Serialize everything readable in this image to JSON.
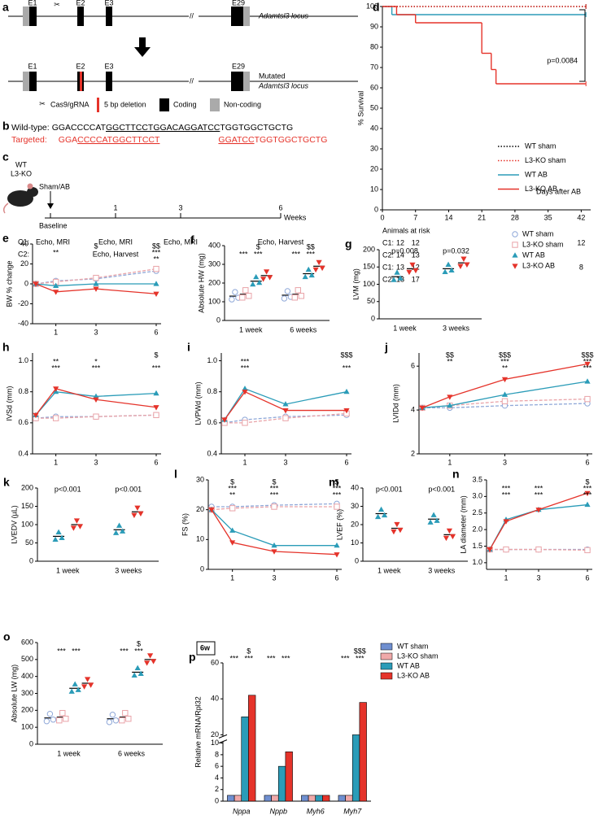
{
  "figure_a": {
    "panel": "a",
    "exons": [
      "E1",
      "E2",
      "E3",
      "E29"
    ],
    "locus": "Adamtsl3 locus",
    "mutated_exons": [
      "E1",
      "E2",
      "E3",
      "E29"
    ],
    "mutated_locus": [
      "Mutated",
      "Adamtsl3 locus"
    ],
    "legend": [
      "Cas9/gRNA",
      "5 bp deletion",
      "Coding",
      "Non-coding"
    ]
  },
  "figure_b": {
    "panel": "b",
    "wild_label": "Wild-type:",
    "wild_seq": [
      "GGACCCCAT",
      "GGCTTCCTGGACAGGATCC",
      "TGGTGGCTGCTG"
    ],
    "targeted_label": "Targeted:",
    "targeted_seq": [
      "GGA",
      "CCCCATGGCTTCCT",
      "GGATCC",
      "TGGTGGCTGCTG"
    ]
  },
  "figure_c": {
    "panel": "c",
    "mouse_labels": [
      "WT",
      "L3-KO"
    ],
    "intervention": "Sham/AB",
    "baseline": "Baseline",
    "timepoints": [
      "1",
      "3",
      "6"
    ],
    "unit": "Weeks",
    "c1_label": "C1:",
    "c1": [
      "Echo, MRI",
      "Echo, MRI",
      "Echo, MRI",
      "Echo, Harvest"
    ],
    "c2_label": "C2:",
    "c2": [
      "Echo, Harvest"
    ]
  },
  "legend": {
    "names": [
      "WT sham",
      "L3-KO sham",
      "WT AB",
      "L3-KO AB"
    ],
    "colors": [
      "#8fa8d8",
      "#e9a3a8",
      "#2b9cb8",
      "#e5332a"
    ],
    "markers": [
      "circle",
      "square",
      "triangle-up",
      "triangle-down"
    ],
    "dashed": [
      true,
      true,
      false,
      false
    ]
  },
  "chart_data": [
    {
      "panel": "d",
      "type": "survival",
      "ylabel": "% Survival",
      "xlabel": "Days after AB",
      "annotation": "p=0.0084",
      "xlim": [
        0,
        44
      ],
      "ylim": [
        0,
        100
      ],
      "xticks": [
        0,
        7,
        14,
        21,
        28,
        35,
        42
      ],
      "yticks": [
        0,
        10,
        20,
        30,
        40,
        50,
        60,
        70,
        80,
        90,
        100
      ],
      "series": [
        {
          "name": "WT sham",
          "color": "#000000",
          "dash": "1.5 2",
          "x": [
            0,
            43
          ],
          "values": [
            100,
            100
          ]
        },
        {
          "name": "L3-KO sham",
          "color": "#e5332a",
          "dash": "1.5 2",
          "x": [
            0,
            43
          ],
          "values": [
            100,
            100
          ]
        },
        {
          "name": "WT AB",
          "color": "#2b9cb8",
          "dash": "",
          "x": [
            0,
            2,
            43
          ],
          "values": [
            100,
            96,
            96
          ]
        },
        {
          "name": "L3-KO AB",
          "color": "#e5332a",
          "dash": "",
          "x": [
            0,
            3,
            7,
            21,
            23,
            24,
            43
          ],
          "values": [
            100,
            96,
            92,
            77,
            69,
            62,
            62
          ]
        }
      ],
      "risk_title": "Animals at risk",
      "risk_days": [
        0,
        7,
        42
      ],
      "risk_rows": [
        {
          "label": "C1:",
          "color": "#2b9cb8",
          "values": [
            12,
            12,
            12
          ]
        },
        {
          "label": "C2:",
          "color": "#2b9cb8",
          "values": [
            14,
            13,
            null
          ]
        },
        {
          "label": "C1:",
          "color": "#e5332a",
          "values": [
            13,
            12,
            8
          ]
        },
        {
          "label": "C2:",
          "color": "#e5332a",
          "values": [
            18,
            17,
            null
          ]
        }
      ]
    },
    {
      "panel": "e",
      "type": "line",
      "ylabel": "BW % change",
      "x": [
        0,
        1,
        3,
        6
      ],
      "xticks": [
        1,
        3,
        6
      ],
      "ylim": [
        -40,
        40
      ],
      "yticks": [
        -40,
        -20,
        0,
        20,
        40
      ],
      "ko_vs_wt_ab": [
        null,
        null,
        "$",
        "$$"
      ],
      "series": [
        {
          "group": 0,
          "values": [
            0,
            3,
            5,
            13
          ],
          "sig": null
        },
        {
          "group": 1,
          "values": [
            0,
            2,
            6,
            15
          ],
          "sig": null
        },
        {
          "group": 2,
          "values": [
            0,
            -2,
            0,
            0
          ],
          "sig": [
            null,
            null,
            null,
            "**"
          ]
        },
        {
          "group": 3,
          "values": [
            0,
            -8,
            -5,
            -10
          ],
          "sig": [
            null,
            "**",
            null,
            "***"
          ]
        }
      ]
    },
    {
      "panel": "f",
      "type": "dot",
      "ylabel": "Absolute HW (mg)",
      "categories": [
        "1 week",
        "6 weeks"
      ],
      "ylim": [
        0,
        400
      ],
      "yticks": [
        0,
        100,
        200,
        300,
        400
      ],
      "ko_vs_wt_ab": [
        "$",
        "$$"
      ],
      "series": [
        {
          "group": 0,
          "values": [
            130,
            135
          ],
          "sig": null
        },
        {
          "group": 1,
          "values": [
            140,
            140
          ],
          "sig": null
        },
        {
          "group": 2,
          "values": [
            210,
            250
          ],
          "sig": [
            "***",
            "***"
          ]
        },
        {
          "group": 3,
          "values": [
            240,
            290
          ],
          "sig": [
            "***",
            "***"
          ]
        }
      ]
    },
    {
      "panel": "g",
      "type": "dot",
      "ylabel": "LVM (mg)",
      "categories": [
        "1 week",
        "3 weeks"
      ],
      "ylim": [
        0,
        200
      ],
      "yticks": [
        0,
        50,
        100,
        150,
        200
      ],
      "pvalues": [
        "p=0.008",
        "p=0.032"
      ],
      "series": [
        {
          "group": 2,
          "values": [
            122,
            145
          ],
          "sig": null
        },
        {
          "group": 3,
          "values": [
            145,
            162
          ],
          "sig": null
        }
      ]
    },
    {
      "panel": "h",
      "type": "line",
      "ylabel": "IVSd (mm)",
      "x": [
        0,
        1,
        3,
        6
      ],
      "xticks": [
        1,
        3,
        6
      ],
      "ylim": [
        0.4,
        1.05
      ],
      "yticks": [
        0.4,
        0.6,
        0.8,
        {
          "value": 1,
          "label": "1.0"
        }
      ],
      "ko_vs_wt_ab": [
        null,
        null,
        null,
        "$"
      ],
      "series": [
        {
          "group": 0,
          "values": [
            0.63,
            0.64,
            0.64,
            0.65
          ],
          "sig": null
        },
        {
          "group": 1,
          "values": [
            0.63,
            0.63,
            0.64,
            0.65
          ],
          "sig": null
        },
        {
          "group": 2,
          "values": [
            0.65,
            0.8,
            0.77,
            0.79
          ],
          "sig": [
            null,
            "***",
            "***",
            "***"
          ]
        },
        {
          "group": 3,
          "values": [
            0.65,
            0.82,
            0.75,
            0.7
          ],
          "sig": [
            null,
            "**",
            "*",
            null
          ]
        }
      ]
    },
    {
      "panel": "i",
      "type": "line",
      "ylabel": "LVPWd (mm)",
      "x": [
        0,
        1,
        3,
        6
      ],
      "xticks": [
        1,
        3,
        6
      ],
      "ylim": [
        0.4,
        1.05
      ],
      "yticks": [
        0.4,
        0.6,
        0.8,
        {
          "value": 1,
          "label": "1.0"
        }
      ],
      "ko_vs_wt_ab": [
        null,
        null,
        null,
        "$$$"
      ],
      "series": [
        {
          "group": 0,
          "values": [
            0.6,
            0.62,
            0.64,
            0.65
          ],
          "sig": null
        },
        {
          "group": 1,
          "values": [
            0.6,
            0.6,
            0.63,
            0.66
          ],
          "sig": null
        },
        {
          "group": 2,
          "values": [
            0.62,
            0.82,
            0.72,
            0.8
          ],
          "sig": [
            null,
            "***",
            null,
            "***"
          ]
        },
        {
          "group": 3,
          "values": [
            0.62,
            0.8,
            0.68,
            0.68
          ],
          "sig": [
            null,
            "***",
            null,
            null
          ]
        }
      ]
    },
    {
      "panel": "j",
      "type": "line",
      "ylabel": "LVIDd (mm)",
      "x": [
        0,
        1,
        3,
        6
      ],
      "xticks": [
        1,
        3,
        6
      ],
      "ylim": [
        2,
        6.6
      ],
      "yticks": [
        2,
        4,
        6
      ],
      "ko_vs_wt_ab": [
        null,
        "$$",
        "$$$",
        "$$$"
      ],
      "series": [
        {
          "group": 0,
          "values": [
            4.1,
            4.1,
            4.2,
            4.3
          ],
          "sig": null
        },
        {
          "group": 1,
          "values": [
            4.1,
            4.2,
            4.4,
            4.5
          ],
          "sig": null
        },
        {
          "group": 2,
          "values": [
            4.1,
            4.2,
            4.7,
            5.3
          ],
          "sig": [
            null,
            null,
            "**",
            "***"
          ]
        },
        {
          "group": 3,
          "values": [
            4.1,
            4.6,
            5.4,
            6.1
          ],
          "sig": [
            null,
            "**",
            "***",
            "***"
          ]
        }
      ]
    },
    {
      "panel": "k",
      "type": "dot",
      "ylabel": "LVEDV (µL)",
      "categories": [
        "1 week",
        "3 weeks"
      ],
      "ylim": [
        0,
        200
      ],
      "yticks": [
        0,
        50,
        100,
        150,
        200
      ],
      "pvalues": [
        "p<0.001",
        "p<0.001"
      ],
      "series": [
        {
          "group": 2,
          "values": [
            68,
            86
          ],
          "sig": null
        },
        {
          "group": 3,
          "values": [
            100,
            135
          ],
          "sig": null
        }
      ]
    },
    {
      "panel": "l",
      "type": "line",
      "ylabel": "FS (%)",
      "x": [
        0,
        1,
        3,
        6
      ],
      "xticks": [
        1,
        3,
        6
      ],
      "ylim": [
        0,
        30
      ],
      "yticks": [
        0,
        10,
        20,
        30
      ],
      "ko_vs_wt_ab": [
        null,
        "$",
        "$",
        "$"
      ],
      "series": [
        {
          "group": 0,
          "values": [
            21,
            21,
            21.5,
            22
          ],
          "sig": null
        },
        {
          "group": 1,
          "values": [
            20,
            20.5,
            21,
            21
          ],
          "sig": null
        },
        {
          "group": 2,
          "values": [
            20,
            13,
            8,
            8
          ],
          "sig": [
            null,
            "**",
            "***",
            "***"
          ]
        },
        {
          "group": 3,
          "values": [
            20,
            9,
            6,
            5
          ],
          "sig": [
            null,
            "***",
            "***",
            "***"
          ]
        }
      ]
    },
    {
      "panel": "m",
      "type": "dot",
      "ylabel": "LVEF (%)",
      "categories": [
        "1 week",
        "3 weeks"
      ],
      "ylim": [
        0,
        40
      ],
      "yticks": [
        0,
        10,
        20,
        30,
        40
      ],
      "pvalues": [
        "p<0.001",
        "p<0.001"
      ],
      "series": [
        {
          "group": 2,
          "values": [
            26,
            23
          ],
          "sig": null
        },
        {
          "group": 3,
          "values": [
            18,
            14.5
          ],
          "sig": null
        }
      ]
    },
    {
      "panel": "n",
      "type": "line",
      "ylabel": "LA diameter (mm)",
      "x": [
        0,
        1,
        3,
        6
      ],
      "xticks": [
        1,
        3,
        6
      ],
      "ylim": [
        0.8,
        3.5
      ],
      "yticks": [
        {
          "value": 1,
          "label": "1.0"
        },
        1.5,
        {
          "value": 2,
          "label": "2.0"
        },
        2.5,
        {
          "value": 3,
          "label": "3.0"
        },
        3.5
      ],
      "ko_vs_wt_ab": [
        null,
        null,
        null,
        "$"
      ],
      "series": [
        {
          "group": 0,
          "values": [
            1.4,
            1.4,
            1.4,
            1.4
          ],
          "sig": null
        },
        {
          "group": 1,
          "values": [
            1.4,
            1.4,
            1.4,
            1.38
          ],
          "sig": null
        },
        {
          "group": 2,
          "values": [
            1.4,
            2.3,
            2.6,
            2.75
          ],
          "sig": [
            null,
            "***",
            "***",
            "***"
          ]
        },
        {
          "group": 3,
          "values": [
            1.4,
            2.25,
            2.6,
            3.1
          ],
          "sig": [
            null,
            "***",
            "***",
            "***"
          ]
        }
      ]
    },
    {
      "panel": "o",
      "type": "dot",
      "ylabel": "Absolute LW (mg)",
      "categories": [
        "1 week",
        "6 weeks"
      ],
      "ylim": [
        0,
        600
      ],
      "yticks": [
        0,
        100,
        200,
        300,
        400,
        500,
        600
      ],
      "ko_vs_wt_ab": [
        null,
        "$"
      ],
      "series": [
        {
          "group": 0,
          "values": [
            155,
            150
          ],
          "sig": null
        },
        {
          "group": 1,
          "values": [
            160,
            160
          ],
          "sig": null
        },
        {
          "group": 2,
          "values": [
            330,
            425
          ],
          "sig": [
            "***",
            "***"
          ]
        },
        {
          "group": 3,
          "values": [
            360,
            500
          ],
          "sig": [
            "***",
            "***"
          ]
        }
      ]
    },
    {
      "panel": "p",
      "type": "bar",
      "label": "6w",
      "ylabel": "Relative mRNA/Rpl32",
      "categories": [
        "Nppa",
        "Nppb",
        "Myh6",
        "Myh7"
      ],
      "ylim": [
        0,
        60
      ],
      "axis_break": [
        10,
        20
      ],
      "yticks": [
        0,
        2,
        4,
        6,
        8,
        10,
        20,
        40,
        60
      ],
      "ko_vs_wt_ab": [
        "$",
        null,
        null,
        "$$$"
      ],
      "series": [
        {
          "name": "WT sham",
          "color": "#6f8fd0",
          "values": [
            1,
            1,
            1,
            1
          ],
          "sig": null
        },
        {
          "name": "L3-KO sham",
          "color": "#f0a9a9",
          "values": [
            1,
            1,
            1,
            1
          ],
          "sig": null
        },
        {
          "name": "WT AB",
          "color": "#2b9cb8",
          "values": [
            30,
            6,
            1,
            20
          ],
          "sig": [
            "***",
            "***",
            null,
            "***"
          ]
        },
        {
          "name": "L3-KO AB",
          "color": "#e5332a",
          "values": [
            42,
            8.5,
            1,
            38
          ],
          "sig": [
            "***",
            "***",
            null,
            "***"
          ]
        }
      ]
    }
  ]
}
